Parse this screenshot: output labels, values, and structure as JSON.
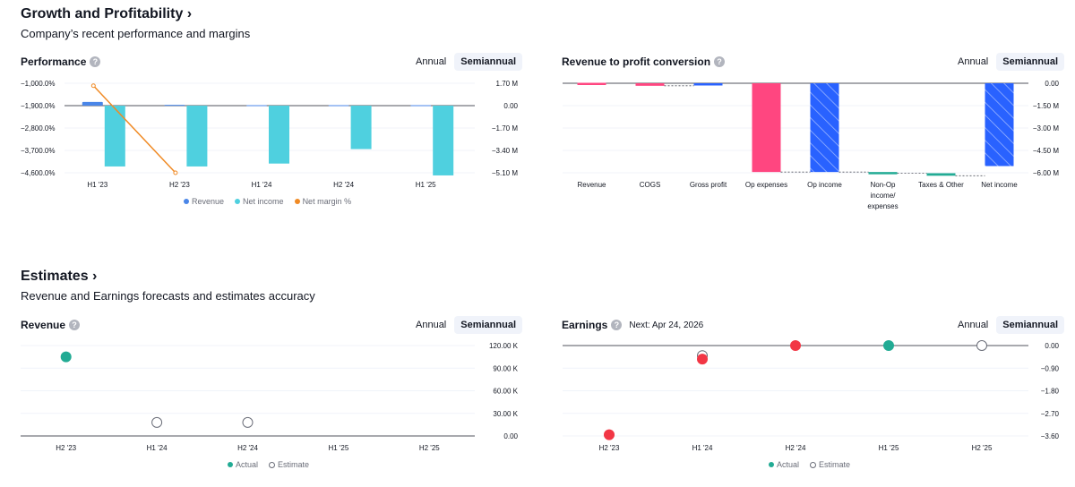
{
  "sections": {
    "growth": {
      "title": "Growth and Profitability",
      "subtitle": "Company’s recent performance and margins"
    },
    "estimates": {
      "title": "Estimates",
      "subtitle": "Revenue and Earnings forecasts and estimates accuracy"
    }
  },
  "tabs": {
    "annual": "Annual",
    "semiannual": "Semiannual"
  },
  "cards": {
    "performance": {
      "title": "Performance"
    },
    "conversion": {
      "title": "Revenue to profit conversion"
    },
    "revenue": {
      "title": "Revenue"
    },
    "earnings": {
      "title": "Earnings",
      "next": "Next: Apr 24, 2026"
    }
  },
  "legends": {
    "performance": [
      "Revenue",
      "Net income",
      "Net margin %"
    ],
    "estimates": [
      "Actual",
      "Estimate"
    ]
  },
  "colors": {
    "revenue": "#4a86e8",
    "net_income": "#4fd0df",
    "margin": "#f08a24",
    "pink": "#ff4680",
    "blue": "#2962ff",
    "green": "#22ab94",
    "red": "#f23645"
  },
  "chart_data": [
    {
      "id": "performance",
      "type": "bar",
      "categories": [
        "H1 '23",
        "H2 '23",
        "H1 '24",
        "H2 '24",
        "H1 '25"
      ],
      "series": [
        {
          "name": "Revenue",
          "axis": "right",
          "values": [
            0.28,
            0.06,
            0.03,
            0.03,
            0.03
          ]
        },
        {
          "name": "Net income",
          "axis": "right",
          "values": [
            -4.62,
            -4.62,
            -4.4,
            -3.3,
            -5.3
          ]
        },
        {
          "name": "Net margin %",
          "axis": "left",
          "type": "line",
          "values": [
            -1100,
            -4600,
            null,
            null,
            null
          ]
        }
      ],
      "left_ticks": [
        "−1,000.0%",
        "−1,900.0%",
        "−2,800.0%",
        "−3,700.0%",
        "−4,600.0%"
      ],
      "left_tick_values": [
        -1000,
        -1900,
        -2800,
        -3700,
        -4600
      ],
      "right_ticks": [
        "1.70 M",
        "0.00",
        "−1.70 M",
        "−3.40 M",
        "−5.10 M"
      ],
      "right_tick_values": [
        1.7,
        0,
        -1.7,
        -3.4,
        -5.1
      ],
      "ylim_right": [
        -5.1,
        1.7
      ],
      "unit_right": "M"
    },
    {
      "id": "conversion",
      "type": "bar",
      "categories": [
        "Revenue",
        "COGS",
        "Gross profit",
        "Op expenses",
        "Op income",
        "Non-Op income/ expenses",
        "Taxes & Other",
        "Net income"
      ],
      "label_lines": [
        [
          "Revenue"
        ],
        [
          "COGS"
        ],
        [
          "Gross profit"
        ],
        [
          "Op expenses"
        ],
        [
          "Op income"
        ],
        [
          "Non-Op",
          "income/",
          "expenses"
        ],
        [
          "Taxes & Other"
        ],
        [
          "Net income"
        ]
      ],
      "values": [
        0.03,
        -0.17,
        0.11,
        -5.95,
        -5.95,
        -0.08,
        -0.24,
        -5.55
      ],
      "right_ticks": [
        "0.00",
        "−1.50 M",
        "−3.00 M",
        "−4.50 M",
        "−6.00 M"
      ],
      "right_tick_values": [
        0,
        -1.5,
        -3,
        -4.5,
        -6
      ],
      "ylim": [
        -6.0,
        0.0
      ],
      "unit": "M"
    },
    {
      "id": "revenue_estimates",
      "type": "scatter",
      "categories": [
        "H2 '23",
        "H1 '24",
        "H2 '24",
        "H1 '25",
        "H2 '25"
      ],
      "actual": [
        105,
        null,
        null,
        null,
        null
      ],
      "estimate": [
        null,
        18,
        18,
        null,
        null
      ],
      "unit": "K",
      "right_ticks": [
        "120.00 K",
        "90.00 K",
        "60.00 K",
        "30.00 K",
        "0.00"
      ],
      "right_tick_values": [
        120,
        90,
        60,
        30,
        0
      ],
      "ylim": [
        0,
        120
      ]
    },
    {
      "id": "earnings_estimates",
      "type": "scatter",
      "categories": [
        "H2 '23",
        "H1 '24",
        "H2 '24",
        "H1 '25",
        "H2 '25"
      ],
      "actual": [
        -3.55,
        -0.54,
        0.0,
        0.0,
        null
      ],
      "actual_beat": [
        false,
        false,
        false,
        true,
        null
      ],
      "estimate": [
        null,
        -0.4,
        null,
        null,
        0.0
      ],
      "right_ticks": [
        "0.00",
        "−0.90",
        "−1.80",
        "−2.70",
        "−3.60"
      ],
      "right_tick_values": [
        0,
        -0.9,
        -1.8,
        -2.7,
        -3.6
      ],
      "ylim": [
        -3.6,
        0
      ]
    }
  ]
}
